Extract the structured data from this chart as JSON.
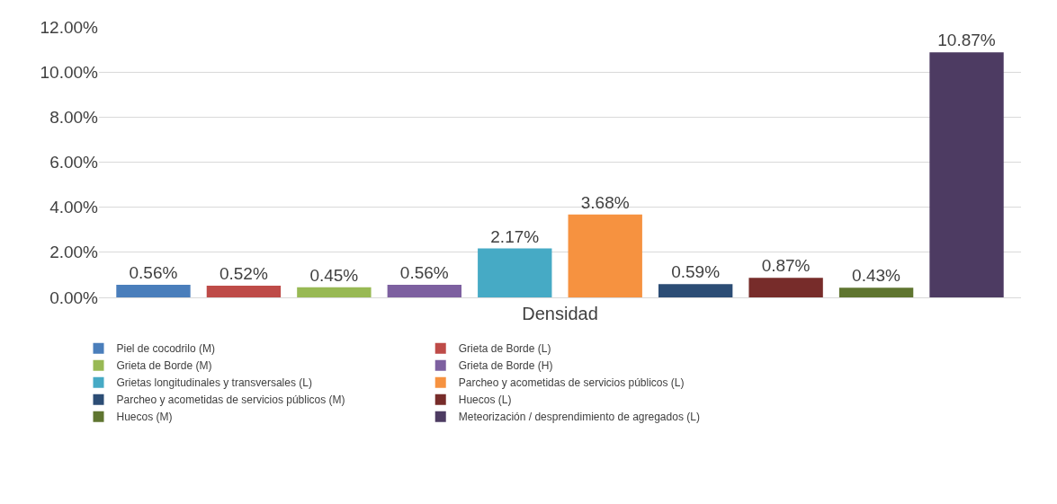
{
  "chart_data": {
    "type": "bar",
    "categories": [
      "Densidad"
    ],
    "series": [
      {
        "name": "Piel de cocodrilo (M)",
        "color": "#4a7ebb",
        "values": [
          0.56
        ],
        "value_labels": [
          "0.56%"
        ]
      },
      {
        "name": "Grieta de Borde (L)",
        "color": "#be4b48",
        "values": [
          0.52
        ],
        "value_labels": [
          "0.52%"
        ]
      },
      {
        "name": "Grieta de Borde (M)",
        "color": "#98b954",
        "values": [
          0.45
        ],
        "value_labels": [
          "0.45%"
        ]
      },
      {
        "name": "Grieta de Borde (H)",
        "color": "#7d60a0",
        "values": [
          0.56
        ],
        "value_labels": [
          "0.56%"
        ]
      },
      {
        "name": "Grietas longitudinales y transversales (L)",
        "color": "#46aac5",
        "values": [
          2.17
        ],
        "value_labels": [
          "2.17%"
        ]
      },
      {
        "name": "Parcheo y acometidas de servicios públicos (L)",
        "color": "#f69240",
        "values": [
          3.68
        ],
        "value_labels": [
          "3.68%"
        ]
      },
      {
        "name": "Parcheo y acometidas de servicios públicos (M)",
        "color": "#2c4d75",
        "values": [
          0.59
        ],
        "value_labels": [
          "0.59%"
        ]
      },
      {
        "name": "Huecos (L)",
        "color": "#772c2a",
        "values": [
          0.87
        ],
        "value_labels": [
          "0.87%"
        ]
      },
      {
        "name": "Huecos (M)",
        "color": "#5f7530",
        "values": [
          0.43
        ],
        "value_labels": [
          "0.43%"
        ]
      },
      {
        "name": "Meteorización / desprendimiento de agregados (L)",
        "color": "#4d3b62",
        "values": [
          10.87
        ],
        "value_labels": [
          "10.87%"
        ]
      }
    ],
    "ylim": [
      0,
      12
    ],
    "yticks": [
      {
        "value": 0,
        "label": "0.00%"
      },
      {
        "value": 2,
        "label": "2.00%"
      },
      {
        "value": 4,
        "label": "4.00%"
      },
      {
        "value": 6,
        "label": "6.00%"
      },
      {
        "value": 8,
        "label": "8.00%"
      },
      {
        "value": 10,
        "label": "10.00%"
      },
      {
        "value": 12,
        "label": "12.00%"
      }
    ],
    "grid": "y",
    "legend": "bottom"
  }
}
